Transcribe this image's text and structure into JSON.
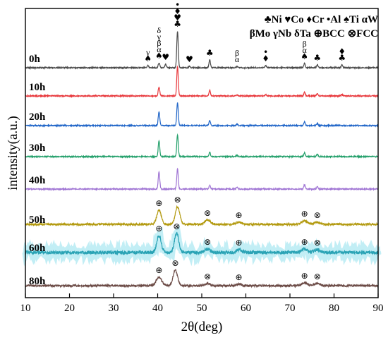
{
  "chart_data": {
    "type": "line",
    "xlabel": "2θ(deg)",
    "ylabel": "intensity(a.u.)",
    "xlim": [
      10,
      90
    ],
    "xticks": [
      10,
      20,
      30,
      40,
      50,
      60,
      70,
      80,
      90
    ],
    "grid": false,
    "legend_position": "top-right",
    "legend_rows": [
      "♣Ni ♥Co ♦Cr •Al ♠Ti αW",
      "βMo γNb δTa ⊕BCC ⊗FCC"
    ],
    "series": [
      {
        "name": "0h",
        "color": "#4a4a4a",
        "peaks": [
          [
            37.8,
            3
          ],
          [
            40.3,
            7
          ],
          [
            41.8,
            5
          ],
          [
            44.5,
            52
          ],
          [
            47.2,
            2
          ],
          [
            51.8,
            11
          ],
          [
            58.0,
            2
          ],
          [
            64.5,
            3
          ],
          [
            73.3,
            6
          ],
          [
            76.2,
            4
          ],
          [
            81.8,
            4
          ]
        ],
        "markers": [
          {
            "x": 37.8,
            "symbols": [
              "γ",
              "♠"
            ]
          },
          {
            "x": 40.3,
            "symbols": [
              "δ",
              "γ",
              "β",
              "α",
              "♠"
            ]
          },
          {
            "x": 41.8,
            "symbols": [
              "♥"
            ]
          },
          {
            "x": 44.5,
            "symbols": [
              "•",
              "♦",
              "♥",
              "♣"
            ]
          },
          {
            "x": 47.2,
            "symbols": [
              "♥"
            ]
          },
          {
            "x": 51.8,
            "symbols": [
              "♣"
            ]
          },
          {
            "x": 58.0,
            "symbols": [
              "β",
              "α"
            ]
          },
          {
            "x": 64.5,
            "symbols": [
              "•",
              "♦"
            ]
          },
          {
            "x": 73.3,
            "symbols": [
              "β",
              "α",
              "♠"
            ]
          },
          {
            "x": 76.2,
            "symbols": [
              "♣"
            ]
          },
          {
            "x": 81.8,
            "symbols": [
              "♦",
              "♣"
            ]
          }
        ]
      },
      {
        "name": "10h",
        "color": "#e8393d",
        "peaks": [
          [
            40.3,
            13
          ],
          [
            44.5,
            42
          ],
          [
            51.8,
            8
          ],
          [
            58.0,
            2
          ],
          [
            64.5,
            2
          ],
          [
            73.3,
            5
          ],
          [
            76.2,
            3
          ],
          [
            81.8,
            2
          ]
        ],
        "markers": []
      },
      {
        "name": "20h",
        "color": "#2166c8",
        "peaks": [
          [
            40.3,
            20
          ],
          [
            44.5,
            33
          ],
          [
            51.8,
            7
          ],
          [
            58.0,
            2
          ],
          [
            73.3,
            5
          ],
          [
            76.2,
            3
          ]
        ],
        "markers": []
      },
      {
        "name": "30h",
        "color": "#24a06b",
        "peaks": [
          [
            40.3,
            23
          ],
          [
            44.5,
            31
          ],
          [
            51.8,
            6
          ],
          [
            58.0,
            2
          ],
          [
            73.3,
            5
          ],
          [
            76.2,
            3
          ]
        ],
        "markers": []
      },
      {
        "name": "40h",
        "color": "#a075d4",
        "peaks": [
          [
            40.3,
            25
          ],
          [
            44.5,
            29
          ],
          [
            51.8,
            5
          ],
          [
            58.0,
            3
          ],
          [
            73.3,
            6
          ],
          [
            76.2,
            3
          ]
        ],
        "markers": []
      },
      {
        "name": "50h",
        "color": "#b39a10",
        "peaks": [
          [
            40.3,
            20
          ],
          [
            44.5,
            25
          ],
          [
            51.3,
            6
          ],
          [
            58.4,
            3
          ],
          [
            73.3,
            5
          ],
          [
            76.2,
            3
          ]
        ],
        "markers": [
          {
            "x": 40.3,
            "symbols": [
              "⊕"
            ]
          },
          {
            "x": 44.5,
            "symbols": [
              "⊗"
            ]
          },
          {
            "x": 51.3,
            "symbols": [
              "⊗"
            ]
          },
          {
            "x": 58.4,
            "symbols": [
              "⊕"
            ]
          },
          {
            "x": 73.3,
            "symbols": [
              "⊕"
            ]
          },
          {
            "x": 76.2,
            "symbols": [
              "⊗"
            ]
          }
        ]
      },
      {
        "name": "60h",
        "color": "#2aa3b5",
        "peaks": [
          [
            40.3,
            24
          ],
          [
            44.3,
            27
          ],
          [
            51.3,
            5
          ],
          [
            58.4,
            4
          ],
          [
            73.3,
            5
          ],
          [
            76.2,
            4
          ]
        ],
        "markers": [
          {
            "x": 40.3,
            "symbols": [
              "⊕"
            ]
          },
          {
            "x": 44.3,
            "symbols": [
              "⊗"
            ]
          },
          {
            "x": 51.3,
            "symbols": [
              "⊗"
            ]
          },
          {
            "x": 58.4,
            "symbols": [
              "⊕"
            ]
          },
          {
            "x": 73.3,
            "symbols": [
              "⊕"
            ]
          },
          {
            "x": 76.2,
            "symbols": [
              "⊗"
            ]
          }
        ]
      },
      {
        "name": "80h",
        "color": "#6b4a45",
        "peaks": [
          [
            40.3,
            12
          ],
          [
            44.0,
            22
          ],
          [
            51.3,
            3
          ],
          [
            58.4,
            2
          ],
          [
            73.3,
            4
          ],
          [
            76.2,
            3
          ]
        ],
        "markers": [
          {
            "x": 40.3,
            "symbols": [
              "⊕"
            ]
          },
          {
            "x": 44.0,
            "symbols": [
              "⊗"
            ]
          },
          {
            "x": 51.3,
            "symbols": [
              "⊗"
            ]
          },
          {
            "x": 58.4,
            "symbols": [
              "⊕"
            ]
          },
          {
            "x": 73.3,
            "symbols": [
              "⊕"
            ]
          },
          {
            "x": 76.2,
            "symbols": [
              "⊗"
            ]
          }
        ]
      }
    ]
  }
}
